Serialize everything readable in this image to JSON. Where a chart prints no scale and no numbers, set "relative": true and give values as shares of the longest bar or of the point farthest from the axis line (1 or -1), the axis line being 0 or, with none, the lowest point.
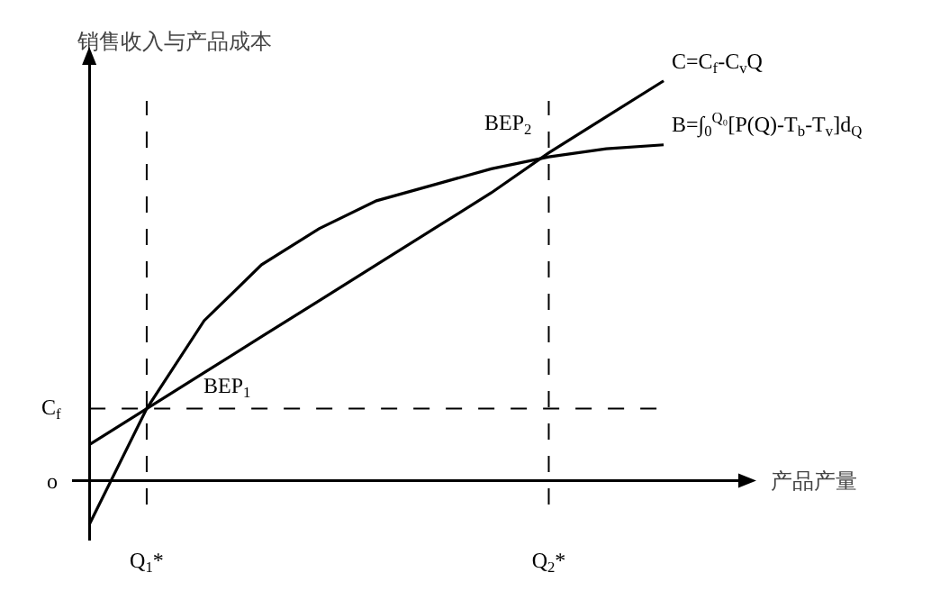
{
  "chart_data": {
    "type": "line",
    "relative": true,
    "xlabel": "产品产量",
    "ylabel": "销售收入与产品成本",
    "categories": [
      null,
      "Q$_{1}$*",
      null,
      null,
      null,
      null,
      null,
      null,
      "Q$_{2}$*",
      null,
      null
    ],
    "grid": false,
    "legend": false,
    "marker": "none",
    "line_style": "solid",
    "series": [
      {
        "name": "C=C$_{f}$-C$_{v}$Q",
        "color": "#000000",
        "values": [
          0.09,
          0.18,
          0.27,
          0.36,
          0.45,
          0.54,
          0.63,
          0.72,
          0.82,
          0.91,
          1.0
        ]
      },
      {
        "name": "B=∫$_{0}$$^{Q₀}$[P(Q)-T$_{b}$-T$_{v}$]d$_{Q}$",
        "color": "#000000",
        "values": [
          -0.11,
          0.18,
          0.4,
          0.54,
          0.63,
          0.7,
          0.74,
          0.78,
          0.81,
          0.83,
          0.84
        ]
      }
    ],
    "ref_lines": [
      {
        "axis": "y",
        "value": 0.18,
        "label": "C$_{f}$",
        "line_style": "dashed",
        "color": "#000000"
      },
      {
        "axis": "x",
        "value": "Q$_{1}$*",
        "line_style": "dashed",
        "color": "#000000"
      },
      {
        "axis": "x",
        "value": "Q$_{2}$*",
        "line_style": "dashed",
        "color": "#000000"
      }
    ],
    "annotations": [
      "o",
      {
        "text": "BEP$_{1}$",
        "x": "Q$_{1}$*",
        "y": 0.18
      },
      {
        "text": "BEP$_{2}$",
        "x": "Q$_{2}$*",
        "y": 0.81
      }
    ]
  }
}
